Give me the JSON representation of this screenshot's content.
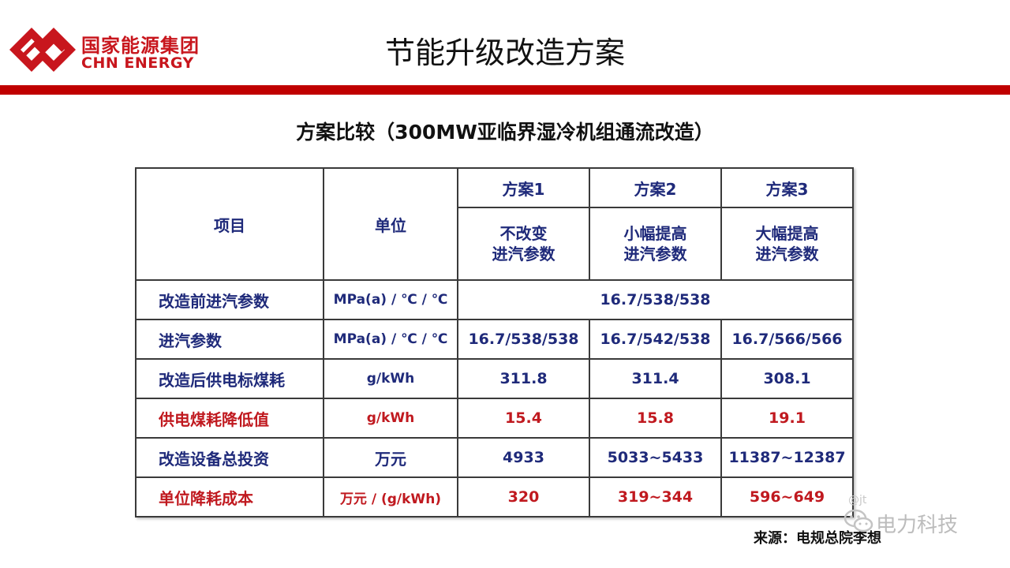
{
  "header": {
    "brand_cn": "国家能源集团",
    "brand_en": "CHN ENERGY",
    "title": "节能升级改造方案"
  },
  "table_title": "方案比较（300MW亚临界湿冷机组通流改造）",
  "table": {
    "col_item": "项目",
    "col_unit": "单位",
    "schemes": [
      {
        "name": "方案1",
        "desc_line1": "不改变",
        "desc_line2": "进汽参数"
      },
      {
        "name": "方案2",
        "desc_line1": "小幅提高",
        "desc_line2": "进汽参数"
      },
      {
        "name": "方案3",
        "desc_line1": "大幅提高",
        "desc_line2": "进汽参数"
      }
    ],
    "row_before": {
      "label": "改造前进汽参数",
      "unit": "MPa(a) / ℃ / ℃",
      "value": "16.7/538/538"
    },
    "rows": [
      {
        "label": "进汽参数",
        "unit": "MPa(a) / ℃ / ℃",
        "values": [
          "16.7/538/538",
          "16.7/542/538",
          "16.7/566/566"
        ]
      },
      {
        "label": "改造后供电标煤耗",
        "unit": "g/kWh",
        "values": [
          "311.8",
          "311.4",
          "308.1"
        ]
      },
      {
        "label": "供电煤耗降低值",
        "unit": "g/kWh",
        "values": [
          "15.4",
          "15.8",
          "19.1"
        ]
      },
      {
        "label": "改造设备总投资",
        "unit": "万元",
        "values": [
          "4933",
          "5033~5433",
          "11387~12387"
        ]
      },
      {
        "label": "单位降耗成本",
        "unit": "万元 / (g/kWh)",
        "values": [
          "320",
          "319~344",
          "596~649"
        ]
      }
    ]
  },
  "source": "来源：电规总院李想",
  "watermark": {
    "text": "电力科技",
    "handle": "@jt"
  },
  "colors": {
    "brand_red": "#c8161d",
    "bar_red": "#c00000",
    "text_blue": "#1f2a7a",
    "highlight_red": "#c0191f"
  }
}
